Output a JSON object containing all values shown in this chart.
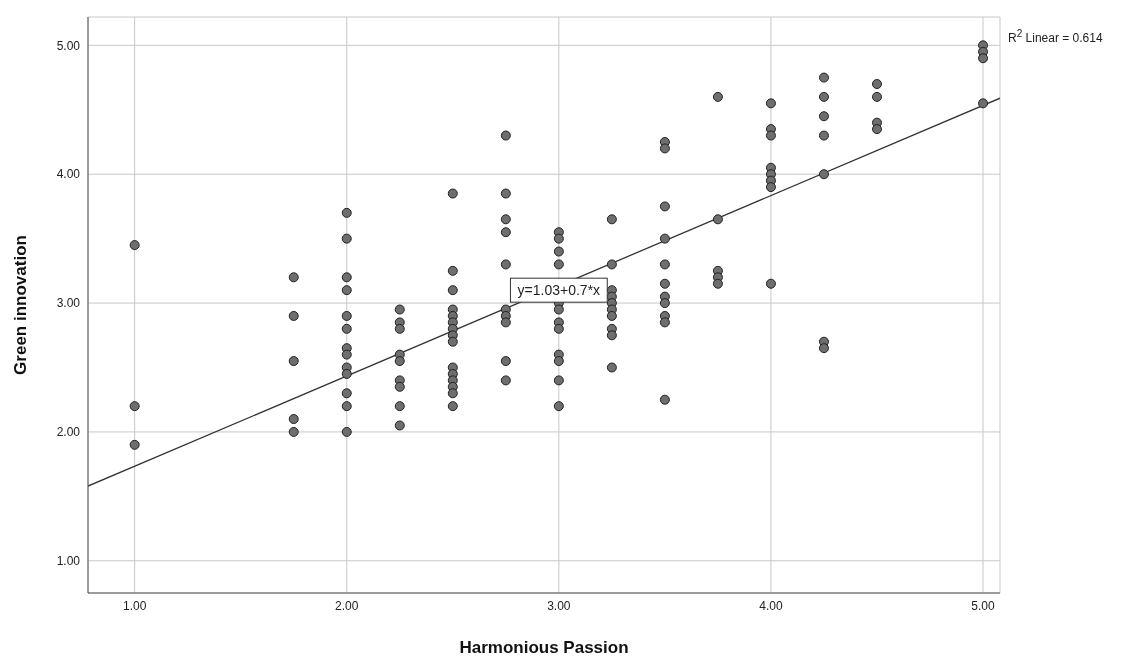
{
  "chart_data": {
    "type": "scatter",
    "xlabel": "Harmonious Passion",
    "ylabel": "Green innovation",
    "xlim": [
      0.78,
      5.08
    ],
    "ylim": [
      0.75,
      5.22
    ],
    "xticks": [
      {
        "value": 1,
        "label": "1.00"
      },
      {
        "value": 2,
        "label": "2.00"
      },
      {
        "value": 3,
        "label": "3.00"
      },
      {
        "value": 4,
        "label": "4.00"
      },
      {
        "value": 5,
        "label": "5.00"
      }
    ],
    "yticks": [
      {
        "value": 1,
        "label": "1.00"
      },
      {
        "value": 2,
        "label": "2.00"
      },
      {
        "value": 3,
        "label": "3.00"
      },
      {
        "value": 4,
        "label": "4.00"
      },
      {
        "value": 5,
        "label": "5.00"
      }
    ],
    "grid": true,
    "series": [
      {
        "color": "#6e6e6e",
        "marker": "circle",
        "x": [
          1,
          1,
          1,
          1.75,
          1.75,
          1.75,
          1.75,
          1.75,
          2,
          2,
          2,
          2,
          2,
          2,
          2,
          2,
          2,
          2,
          2,
          2,
          2,
          2.25,
          2.25,
          2.25,
          2.25,
          2.25,
          2.25,
          2.25,
          2.25,
          2.25,
          2.5,
          2.5,
          2.5,
          2.5,
          2.5,
          2.5,
          2.5,
          2.5,
          2.5,
          2.5,
          2.5,
          2.5,
          2.5,
          2.5,
          2.5,
          2.75,
          2.75,
          2.75,
          2.75,
          2.75,
          2.75,
          2.75,
          2.75,
          2.75,
          2.75,
          3,
          3,
          3,
          3,
          3,
          3,
          3,
          3,
          3,
          3,
          3,
          3,
          3.25,
          3.25,
          3.25,
          3.25,
          3.25,
          3.25,
          3.25,
          3.25,
          3.25,
          3.25,
          3.5,
          3.5,
          3.5,
          3.5,
          3.5,
          3.5,
          3.5,
          3.5,
          3.5,
          3.5,
          3.5,
          3.75,
          3.75,
          3.75,
          3.75,
          3.75,
          4,
          4,
          4,
          4,
          4,
          4,
          4,
          4,
          4.25,
          4.25,
          4.25,
          4.25,
          4.25,
          4.25,
          4.25,
          4.5,
          4.5,
          4.5,
          4.5,
          5,
          5,
          5,
          5
        ],
        "values": [
          3.45,
          2.2,
          1.9,
          3.2,
          2.9,
          2.55,
          2.1,
          2.0,
          3.7,
          3.5,
          3.2,
          3.1,
          2.9,
          2.8,
          2.65,
          2.6,
          2.5,
          2.45,
          2.3,
          2.2,
          2.0,
          2.95,
          2.85,
          2.8,
          2.6,
          2.55,
          2.4,
          2.35,
          2.2,
          2.05,
          3.85,
          3.25,
          3.1,
          2.95,
          2.9,
          2.85,
          2.8,
          2.75,
          2.7,
          2.5,
          2.45,
          2.4,
          2.35,
          2.3,
          2.2,
          4.3,
          3.85,
          3.65,
          3.55,
          3.3,
          2.95,
          2.9,
          2.85,
          2.55,
          2.4,
          3.55,
          3.5,
          3.4,
          3.3,
          3.0,
          2.95,
          2.85,
          2.8,
          2.6,
          2.55,
          2.4,
          2.2,
          3.65,
          3.3,
          3.1,
          3.05,
          3.0,
          2.95,
          2.9,
          2.8,
          2.75,
          2.5,
          4.25,
          4.2,
          3.75,
          3.5,
          3.3,
          3.15,
          3.05,
          3.0,
          2.9,
          2.85,
          2.25,
          4.6,
          3.65,
          3.25,
          3.2,
          3.15,
          4.55,
          4.35,
          4.3,
          4.05,
          4.0,
          3.95,
          3.9,
          3.15,
          4.75,
          4.6,
          4.45,
          4.3,
          4.0,
          2.7,
          2.65,
          4.7,
          4.6,
          4.4,
          4.35,
          5.0,
          4.95,
          4.9,
          4.55
        ]
      },
      {
        "type": "line",
        "color": "#333333",
        "line_style": "solid",
        "x": [
          0.78,
          5.08
        ],
        "values": [
          1.58,
          4.59
        ]
      }
    ],
    "annotations": [
      {
        "text": "y=1.03+0.7*x",
        "x": 3,
        "y": 3.1
      },
      "R$^{2}$ Linear = 0.614"
    ]
  }
}
